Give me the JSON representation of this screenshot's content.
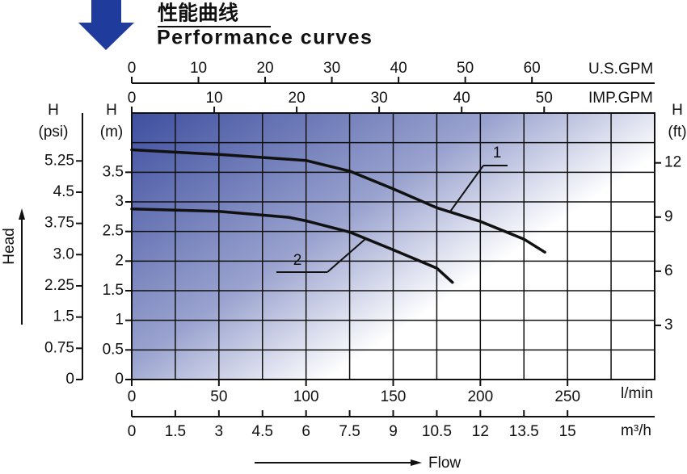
{
  "chart_data": {
    "type": "line",
    "title": "性能曲线",
    "subtitle": "Performance curves",
    "xlabel": "Flow",
    "ylabel": "Head",
    "grid": true,
    "xgrid": [
      25,
      50,
      75,
      100,
      125,
      150,
      175,
      200,
      225,
      250,
      275
    ],
    "ygrid": [
      0.5,
      1,
      1.5,
      2,
      2.5,
      3,
      3.5,
      4
    ],
    "x_axes": [
      {
        "label": "l/min",
        "xlim": [
          0,
          300
        ],
        "xticks": [
          0,
          50,
          100,
          150,
          200,
          250
        ]
      },
      {
        "label": "m³/h",
        "xlim": [
          0,
          18
        ],
        "xticks": [
          0,
          1.5,
          3,
          4.5,
          6,
          7.5,
          9,
          10.5,
          12,
          13.5,
          15
        ]
      },
      {
        "label": "U.S.GPM",
        "xlim": [
          0,
          78.4
        ],
        "xticks": [
          0,
          10,
          20,
          30,
          40,
          50,
          60
        ]
      },
      {
        "label": "IMP.GPM",
        "xlim": [
          0,
          63.4
        ],
        "xticks": [
          0,
          10,
          20,
          30,
          40,
          50
        ]
      }
    ],
    "y_axes": [
      {
        "name": "H",
        "unit": "(m)",
        "ylim": [
          0,
          4.5
        ],
        "yticks": [
          0,
          0.5,
          1,
          1.5,
          2,
          2.5,
          3,
          3.5
        ]
      },
      {
        "name": "H",
        "unit": "(psi)",
        "ylim": [
          0,
          6.4
        ],
        "yticks": [
          0,
          0.75,
          1.5,
          2.25,
          {
            "value": 3,
            "label": "3.0"
          },
          3.75,
          4.5,
          5.25
        ]
      },
      {
        "name": "H",
        "unit": "(ft)",
        "ylim": [
          0,
          14.76
        ],
        "yticks": [
          3,
          6,
          9,
          12
        ]
      }
    ],
    "series": [
      {
        "name": "1",
        "color": "#111111",
        "x": [
          0,
          50,
          100,
          125,
          150,
          175,
          200,
          225,
          237
        ],
        "values": [
          3.88,
          3.8,
          3.7,
          3.52,
          3.22,
          2.9,
          2.67,
          2.37,
          2.15
        ]
      },
      {
        "name": "2",
        "color": "#111111",
        "x": [
          0,
          50,
          90,
          100,
          125,
          150,
          175,
          184
        ],
        "values": [
          2.88,
          2.84,
          2.74,
          2.68,
          2.49,
          2.19,
          1.88,
          1.64
        ]
      }
    ]
  }
}
